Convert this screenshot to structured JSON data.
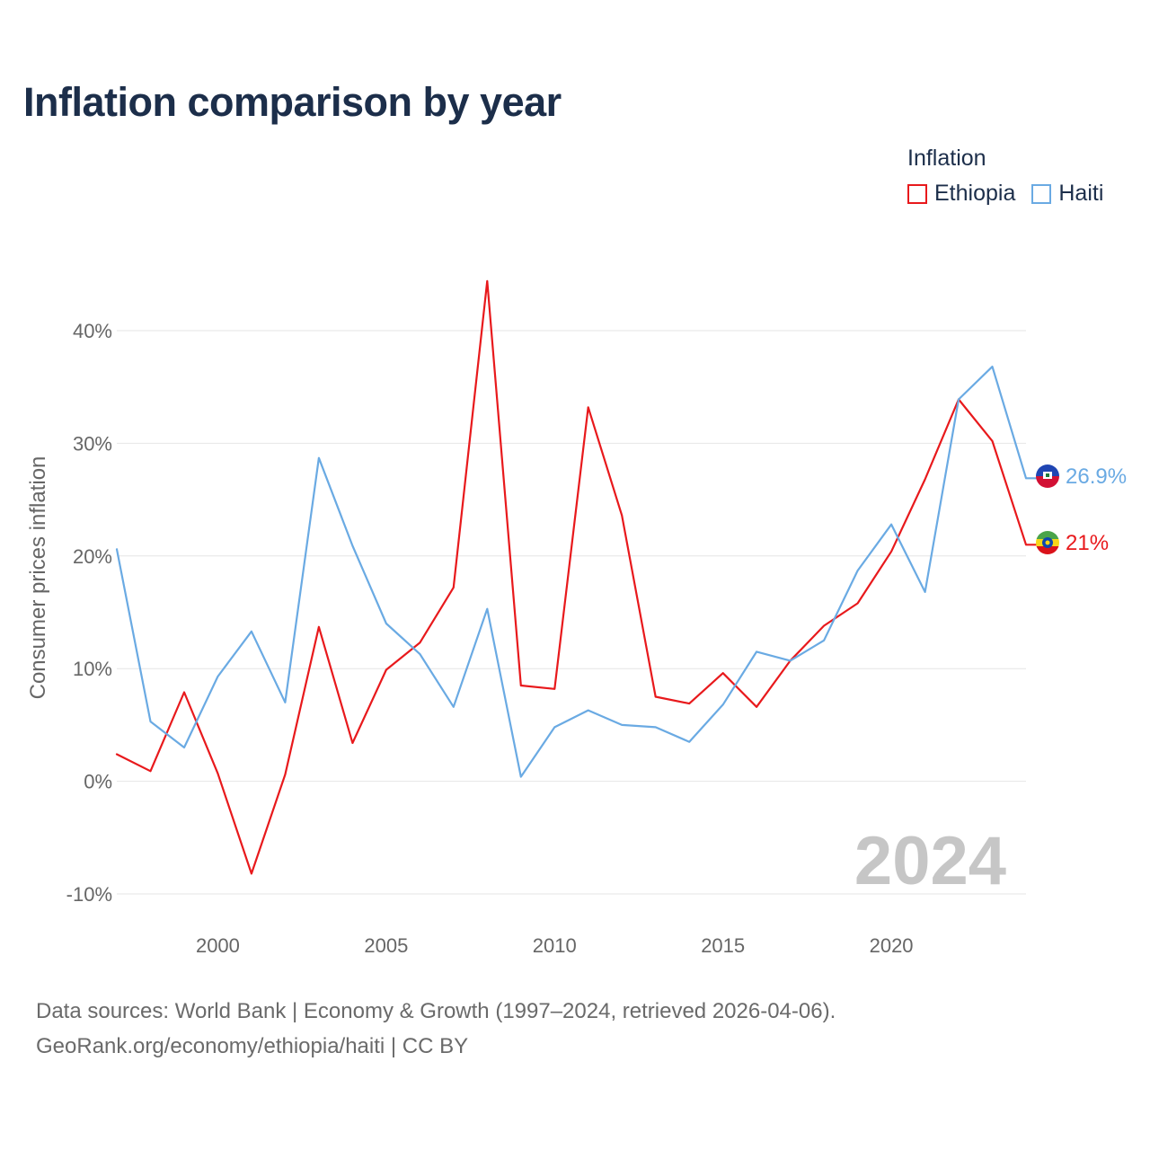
{
  "title": "Inflation comparison by year",
  "legend": {
    "title": "Inflation",
    "items": [
      {
        "label": "Ethiopia",
        "color": "#e8191c"
      },
      {
        "label": "Haiti",
        "color": "#6aaae3"
      }
    ]
  },
  "source": {
    "line1": "Data sources: World Bank | Economy & Growth (1997–2024, retrieved 2026-04-06).",
    "line2": "GeoRank.org/economy/ethiopia/haiti | CC BY"
  },
  "chart_data": {
    "type": "line",
    "title": "Inflation comparison by year",
    "xlabel": "",
    "ylabel": "Consumer prices inflation",
    "xlim": [
      1997,
      2024
    ],
    "ylim": [
      -10,
      40
    ],
    "x_ticks": [
      2000,
      2005,
      2010,
      2015,
      2020
    ],
    "y_ticks": [
      {
        "value": -10,
        "label": "-10%"
      },
      {
        "value": 0,
        "label": "0%"
      },
      {
        "value": 10,
        "label": "10%"
      },
      {
        "value": 20,
        "label": "20%"
      },
      {
        "value": 30,
        "label": "30%"
      },
      {
        "value": 40,
        "label": "40%"
      }
    ],
    "watermark_year": "2024",
    "x": [
      1997,
      1998,
      1999,
      2000,
      2001,
      2002,
      2003,
      2004,
      2005,
      2006,
      2007,
      2008,
      2009,
      2010,
      2011,
      2012,
      2013,
      2014,
      2015,
      2016,
      2017,
      2018,
      2019,
      2020,
      2021,
      2022,
      2023,
      2024
    ],
    "series": [
      {
        "name": "Ethiopia",
        "color": "#e8191c",
        "end_label": "21%",
        "flag": "ethiopia-flag-icon",
        "values": [
          2.4,
          0.9,
          7.9,
          0.7,
          -8.2,
          0.6,
          13.7,
          3.4,
          9.9,
          12.3,
          17.2,
          44.4,
          8.5,
          8.2,
          33.2,
          23.6,
          7.5,
          6.9,
          9.6,
          6.6,
          10.7,
          13.8,
          15.8,
          20.4,
          26.8,
          33.9,
          30.2,
          21.0
        ]
      },
      {
        "name": "Haiti",
        "color": "#6aaae3",
        "end_label": "26.9%",
        "flag": "haiti-flag-icon",
        "values": [
          20.6,
          5.3,
          3.0,
          9.3,
          13.3,
          7.0,
          28.7,
          20.9,
          14.0,
          11.3,
          6.6,
          15.3,
          0.4,
          4.8,
          6.3,
          5.0,
          4.8,
          3.5,
          6.8,
          11.5,
          10.7,
          12.5,
          18.7,
          22.8,
          16.8,
          33.9,
          36.8,
          26.9
        ]
      }
    ]
  }
}
